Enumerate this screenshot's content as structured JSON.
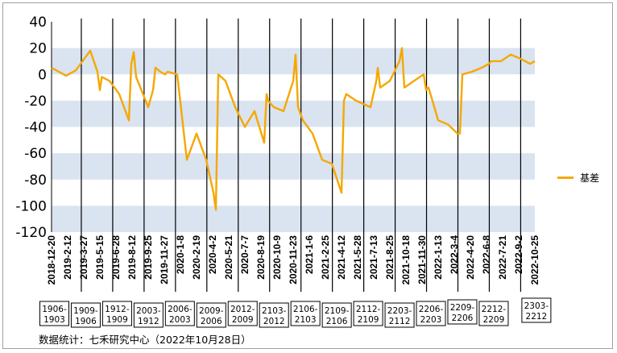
{
  "chart_data": {
    "type": "line",
    "title": "",
    "xlabel": "",
    "ylabel": "",
    "ylim": [
      -120,
      40
    ],
    "yticks": [
      40,
      20,
      0,
      -20,
      -40,
      -60,
      -80,
      -100,
      -120
    ],
    "shaded_bands": [
      [
        0,
        20
      ],
      [
        -40,
        -20
      ],
      [
        -80,
        -60
      ],
      [
        -120,
        -100
      ]
    ],
    "band_color": "#dae3f0",
    "line_color": "#f5a800",
    "x_tick_labels": [
      "2018-12-20",
      "2019-2-12",
      "2019-3-27",
      "2019-5-15",
      "2019-6-28",
      "2019-8-12",
      "2019-9-25",
      "2019-11-27",
      "2020-1-8",
      "2020-2-19",
      "2020-4-2",
      "2020-5-21",
      "2020-7-7",
      "2020-8-19",
      "2020-10-9",
      "2020-11-23",
      "2021-1-6",
      "2021-2-25",
      "2021-4-12",
      "2021-5-28",
      "2021-7-13",
      "2021-8-25",
      "2021-10-18",
      "2021-11-30",
      "2022-1-13",
      "2022-3-4",
      "2022-4-20",
      "2022-6-8",
      "2022-7-21",
      "2022-9-2",
      "2022-10-25"
    ],
    "contract_boxes": [
      "1906-1903",
      "1909-1906",
      "1912-1909",
      "2003-1912",
      "2006-2003",
      "2009-2006",
      "2012-2009",
      "2103-2012",
      "2106-2103",
      "2109-2106",
      "2112-2109",
      "2203-2112",
      "2206-2203",
      "2209-2206",
      "2212-2209",
      "2303-2212"
    ],
    "series": [
      {
        "name": "基差",
        "x": [
          0,
          0.03,
          0.05,
          0.08,
          0.095,
          0.1,
          0.104,
          0.12,
          0.14,
          0.16,
          0.165,
          0.17,
          0.175,
          0.2,
          0.21,
          0.215,
          0.225,
          0.235,
          0.24,
          0.26,
          0.28,
          0.3,
          0.32,
          0.335,
          0.34,
          0.345,
          0.36,
          0.38,
          0.4,
          0.42,
          0.44,
          0.445,
          0.448,
          0.46,
          0.48,
          0.5,
          0.505,
          0.51,
          0.52,
          0.54,
          0.56,
          0.58,
          0.6,
          0.605,
          0.61,
          0.63,
          0.66,
          0.672,
          0.675,
          0.68,
          0.7,
          0.72,
          0.725,
          0.73,
          0.75,
          0.77,
          0.775,
          0.78,
          0.8,
          0.82,
          0.84,
          0.845,
          0.85,
          0.87,
          0.89,
          0.9,
          0.905,
          0.91,
          0.93,
          0.95,
          0.97,
          0.99,
          1.0
        ],
        "y": [
          5,
          -1,
          3,
          18,
          2,
          -12,
          -2,
          -5,
          -15,
          -35,
          8,
          17,
          -2,
          -25,
          -12,
          5,
          2,
          0,
          2,
          0,
          -65,
          -45,
          -65,
          -90,
          -103,
          0,
          -5,
          -25,
          -40,
          -28,
          -52,
          -15,
          -20,
          -25,
          -28,
          -5,
          15,
          -25,
          -35,
          -45,
          -65,
          -68,
          -90,
          -20,
          -15,
          -20,
          -25,
          -5,
          5,
          -10,
          -5,
          10,
          20,
          -10,
          -5,
          0,
          -12,
          -10,
          -35,
          -38,
          -45,
          -45,
          0,
          2,
          5,
          7,
          8,
          10,
          10,
          15,
          12,
          8,
          10
        ]
      }
    ]
  },
  "legend": {
    "label": "基差"
  },
  "source_note": "数据统计：七禾研究中心（2022年10月28日）"
}
